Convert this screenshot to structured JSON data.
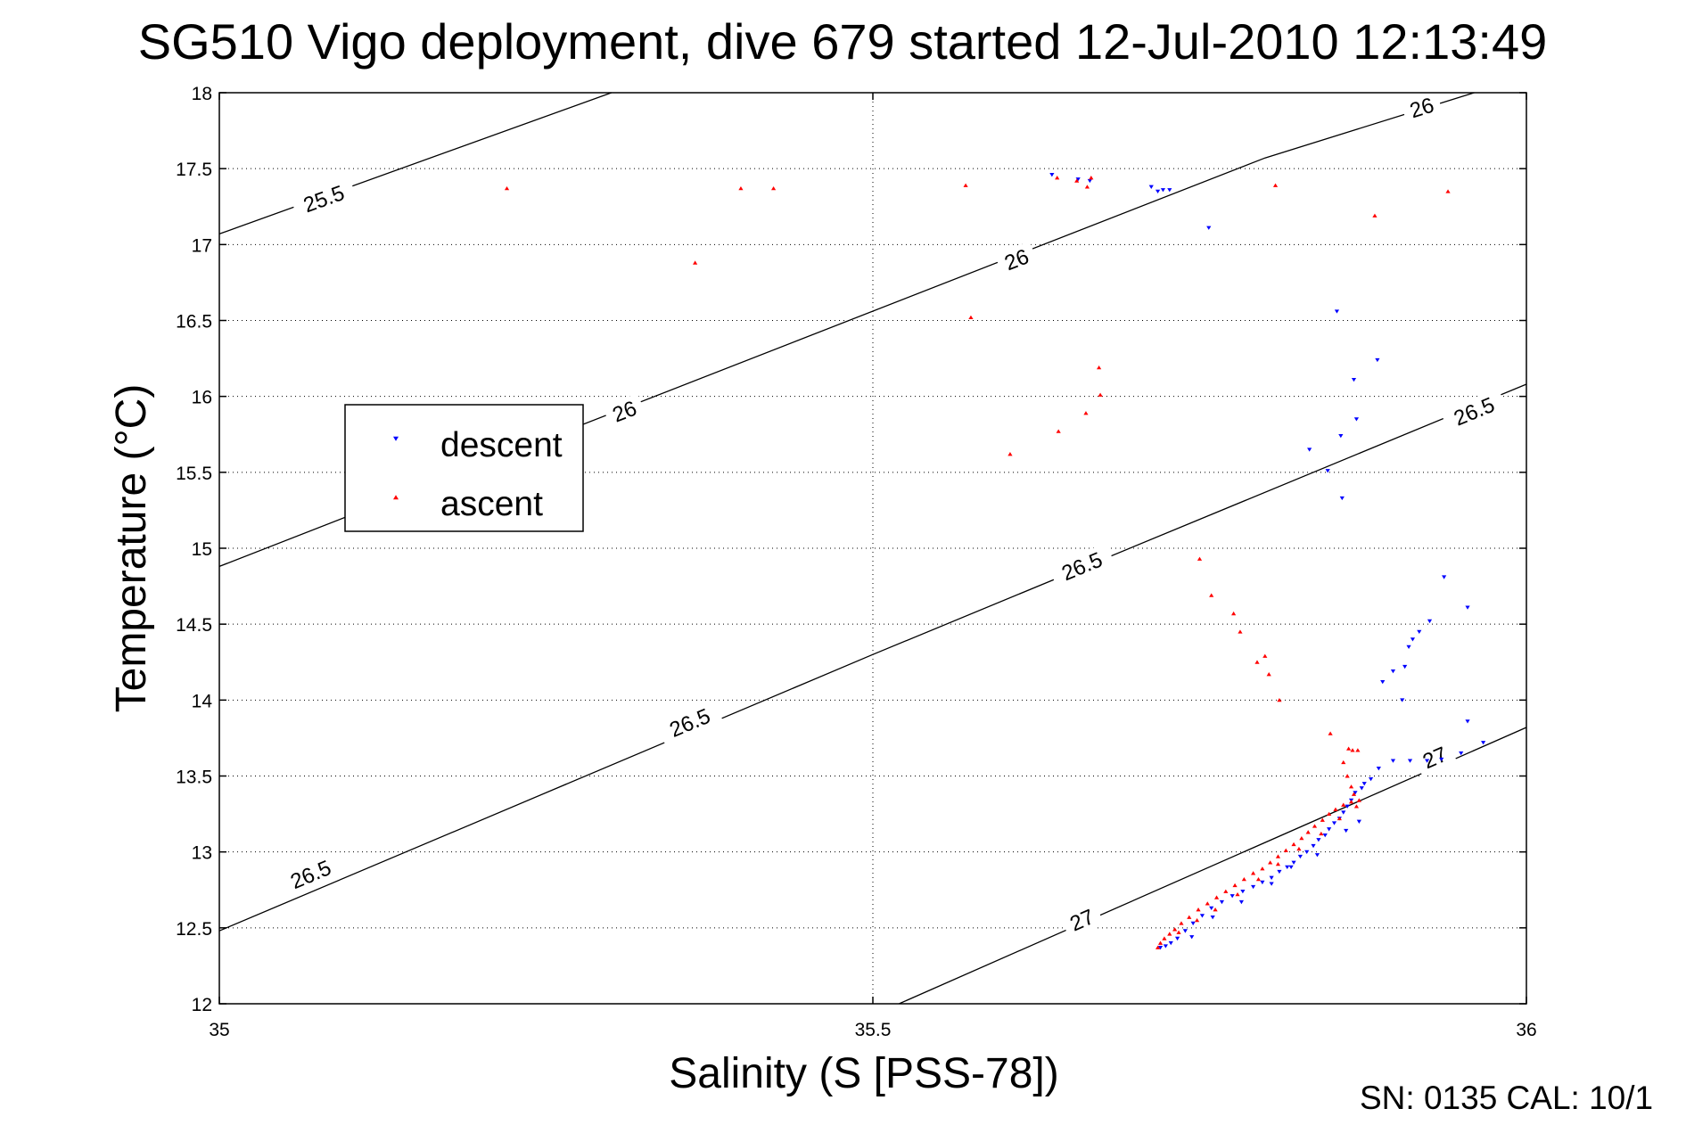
{
  "chart_data": {
    "type": "scatter",
    "title": "SG510 Vigo deployment, dive 679 started 12-Jul-2010 12:13:49",
    "xlabel": "Salinity (S [PSS-78])",
    "ylabel": "Temperature (°C)",
    "xlim": [
      35,
      36
    ],
    "ylim": [
      12,
      18
    ],
    "x_ticks": [
      "35",
      "35.5",
      "36"
    ],
    "y_ticks": [
      "12",
      "12.5",
      "13",
      "13.5",
      "14",
      "14.5",
      "15",
      "15.5",
      "16",
      "16.5",
      "17",
      "17.5",
      "18"
    ],
    "grid": true,
    "legend_position": "left",
    "footer": "SN: 0135  CAL: 10/1",
    "contours": [
      {
        "label": "25.5",
        "points": [
          [
            35.0,
            17.07
          ],
          [
            35.3,
            18.0
          ]
        ],
        "label_positions": [
          [
            35.08,
            17.3
          ]
        ]
      },
      {
        "label": "26",
        "points": [
          [
            35.0,
            14.88
          ],
          [
            35.8,
            17.57
          ],
          [
            35.96,
            18.0
          ]
        ],
        "label_positions": [
          [
            35.31,
            15.9
          ],
          [
            35.61,
            16.9
          ],
          [
            35.92,
            17.9
          ]
        ]
      },
      {
        "label": "26.5",
        "points": [
          [
            35.0,
            12.48
          ],
          [
            35.5,
            14.3
          ],
          [
            36.0,
            16.08
          ]
        ],
        "label_positions": [
          [
            35.07,
            12.85
          ],
          [
            35.36,
            13.85
          ],
          [
            35.66,
            14.88
          ],
          [
            35.96,
            15.9
          ]
        ]
      },
      {
        "label": "27",
        "points": [
          [
            35.52,
            12.0
          ],
          [
            36.0,
            13.82
          ]
        ],
        "label_positions": [
          [
            35.66,
            12.55
          ],
          [
            35.93,
            13.62
          ]
        ]
      }
    ],
    "series": [
      {
        "name": "descent",
        "color": "#0000ff",
        "marker": "triangle-down",
        "points": [
          [
            35.637,
            17.46
          ],
          [
            35.657,
            17.43
          ],
          [
            35.666,
            17.42
          ],
          [
            35.713,
            17.38
          ],
          [
            35.718,
            17.35
          ],
          [
            35.722,
            17.36
          ],
          [
            35.727,
            17.36
          ],
          [
            35.757,
            17.11
          ],
          [
            35.855,
            16.56
          ],
          [
            35.886,
            16.24
          ],
          [
            35.868,
            16.11
          ],
          [
            35.87,
            15.85
          ],
          [
            35.858,
            15.74
          ],
          [
            35.834,
            15.65
          ],
          [
            35.848,
            15.51
          ],
          [
            35.859,
            15.33
          ],
          [
            35.937,
            14.81
          ],
          [
            35.955,
            14.61
          ],
          [
            35.926,
            14.52
          ],
          [
            35.918,
            14.45
          ],
          [
            35.913,
            14.4
          ],
          [
            35.91,
            14.35
          ],
          [
            35.907,
            14.22
          ],
          [
            35.898,
            14.19
          ],
          [
            35.89,
            14.12
          ],
          [
            35.905,
            14.0
          ],
          [
            35.955,
            13.86
          ],
          [
            35.967,
            13.72
          ],
          [
            35.95,
            13.65
          ],
          [
            35.935,
            13.61
          ],
          [
            35.924,
            13.6
          ],
          [
            35.911,
            13.6
          ],
          [
            35.898,
            13.6
          ],
          [
            35.887,
            13.55
          ],
          [
            35.881,
            13.48
          ],
          [
            35.876,
            13.45
          ],
          [
            35.874,
            13.42
          ],
          [
            35.869,
            13.39
          ],
          [
            35.866,
            13.34
          ],
          [
            35.863,
            13.3
          ],
          [
            35.86,
            13.26
          ],
          [
            35.857,
            13.22
          ],
          [
            35.853,
            13.19
          ],
          [
            35.849,
            13.15
          ],
          [
            35.846,
            13.11
          ],
          [
            35.841,
            13.08
          ],
          [
            35.837,
            13.04
          ],
          [
            35.832,
            13.0
          ],
          [
            35.827,
            12.97
          ],
          [
            35.822,
            12.93
          ],
          [
            35.817,
            12.9
          ],
          [
            35.811,
            12.87
          ],
          [
            35.805,
            12.83
          ],
          [
            35.798,
            12.8
          ],
          [
            35.791,
            12.77
          ],
          [
            35.783,
            12.74
          ],
          [
            35.775,
            12.71
          ],
          [
            35.767,
            12.67
          ],
          [
            35.759,
            12.63
          ],
          [
            35.752,
            12.58
          ],
          [
            35.745,
            12.53
          ],
          [
            35.739,
            12.48
          ],
          [
            35.733,
            12.43
          ],
          [
            35.728,
            12.4
          ],
          [
            35.724,
            12.38
          ],
          [
            35.72,
            12.37
          ],
          [
            35.744,
            12.44
          ],
          [
            35.76,
            12.57
          ],
          [
            35.782,
            12.67
          ],
          [
            35.805,
            12.79
          ],
          [
            35.82,
            12.9
          ],
          [
            35.84,
            12.98
          ],
          [
            35.862,
            13.14
          ],
          [
            35.872,
            13.2
          ]
        ]
      },
      {
        "name": "ascent",
        "color": "#ff0000",
        "marker": "triangle-up",
        "points": [
          [
            35.22,
            17.37
          ],
          [
            35.364,
            16.88
          ],
          [
            35.399,
            17.37
          ],
          [
            35.424,
            17.37
          ],
          [
            35.571,
            17.39
          ],
          [
            35.575,
            16.52
          ],
          [
            35.605,
            15.62
          ],
          [
            35.641,
            17.44
          ],
          [
            35.642,
            15.77
          ],
          [
            35.656,
            17.42
          ],
          [
            35.664,
            17.38
          ],
          [
            35.667,
            17.44
          ],
          [
            35.663,
            15.89
          ],
          [
            35.673,
            16.19
          ],
          [
            35.674,
            16.01
          ],
          [
            35.75,
            14.93
          ],
          [
            35.759,
            14.69
          ],
          [
            35.776,
            14.57
          ],
          [
            35.781,
            14.45
          ],
          [
            35.794,
            14.25
          ],
          [
            35.8,
            14.29
          ],
          [
            35.803,
            14.17
          ],
          [
            35.811,
            14.0
          ],
          [
            35.808,
            17.39
          ],
          [
            35.884,
            17.19
          ],
          [
            35.94,
            17.35
          ],
          [
            35.85,
            13.78
          ],
          [
            35.86,
            13.59
          ],
          [
            35.864,
            13.68
          ],
          [
            35.867,
            13.67
          ],
          [
            35.871,
            13.67
          ],
          [
            35.863,
            13.5
          ],
          [
            35.866,
            13.43
          ],
          [
            35.868,
            13.38
          ],
          [
            35.872,
            13.34
          ],
          [
            35.866,
            13.33
          ],
          [
            35.86,
            13.31
          ],
          [
            35.854,
            13.28
          ],
          [
            35.849,
            13.25
          ],
          [
            35.844,
            13.21
          ],
          [
            35.838,
            13.17
          ],
          [
            35.833,
            13.13
          ],
          [
            35.828,
            13.09
          ],
          [
            35.822,
            13.05
          ],
          [
            35.816,
            13.01
          ],
          [
            35.81,
            12.97
          ],
          [
            35.804,
            12.93
          ],
          [
            35.798,
            12.89
          ],
          [
            35.791,
            12.86
          ],
          [
            35.784,
            12.82
          ],
          [
            35.777,
            12.78
          ],
          [
            35.77,
            12.74
          ],
          [
            35.763,
            12.7
          ],
          [
            35.756,
            12.66
          ],
          [
            35.749,
            12.62
          ],
          [
            35.742,
            12.57
          ],
          [
            35.736,
            12.53
          ],
          [
            35.731,
            12.49
          ],
          [
            35.727,
            12.46
          ],
          [
            35.723,
            12.43
          ],
          [
            35.72,
            12.4
          ],
          [
            35.718,
            12.37
          ],
          [
            35.734,
            12.47
          ],
          [
            35.748,
            12.55
          ],
          [
            35.762,
            12.62
          ],
          [
            35.779,
            12.72
          ],
          [
            35.795,
            12.82
          ],
          [
            35.81,
            12.92
          ],
          [
            35.826,
            13.02
          ],
          [
            35.843,
            13.12
          ],
          [
            35.857,
            13.22
          ],
          [
            35.87,
            13.3
          ]
        ]
      }
    ]
  }
}
